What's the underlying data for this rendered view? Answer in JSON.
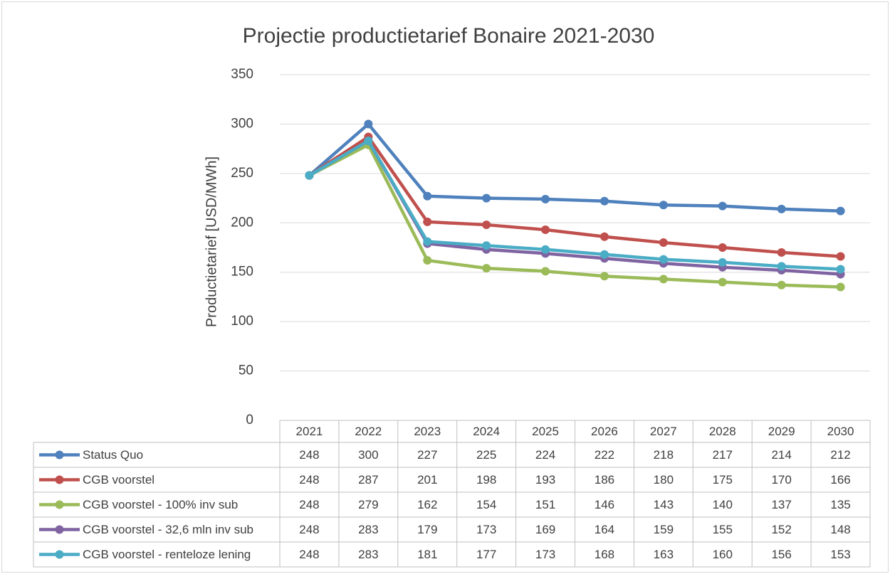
{
  "chart_data": {
    "type": "line",
    "title": "Projectie productietarief Bonaire 2021-2030",
    "y_label": "Productietarief [USD/MWh]",
    "categories": [
      "2021",
      "2022",
      "2023",
      "2024",
      "2025",
      "2026",
      "2027",
      "2028",
      "2029",
      "2030"
    ],
    "ylim": [
      0,
      350
    ],
    "yticks": [
      0,
      50,
      100,
      150,
      200,
      250,
      300,
      350
    ],
    "grid": true,
    "series": [
      {
        "name": "Status Quo",
        "color": "#4f81bd",
        "values": [
          248,
          300,
          227,
          225,
          224,
          222,
          218,
          217,
          214,
          212
        ]
      },
      {
        "name": "CGB voorstel",
        "color": "#c0504d",
        "values": [
          248,
          287,
          201,
          198,
          193,
          186,
          180,
          175,
          170,
          166
        ]
      },
      {
        "name": "CGB voorstel - 100% inv sub",
        "color": "#9bbb59",
        "values": [
          248,
          279,
          162,
          154,
          151,
          146,
          143,
          140,
          137,
          135
        ]
      },
      {
        "name": "CGB voorstel - 32,6 mln inv sub",
        "color": "#8064a2",
        "values": [
          248,
          283,
          179,
          173,
          169,
          164,
          159,
          155,
          152,
          148
        ]
      },
      {
        "name": "CGB voorstel - renteloze lening",
        "color": "#4bacc6",
        "values": [
          248,
          283,
          181,
          177,
          173,
          168,
          163,
          160,
          156,
          153
        ]
      }
    ]
  }
}
